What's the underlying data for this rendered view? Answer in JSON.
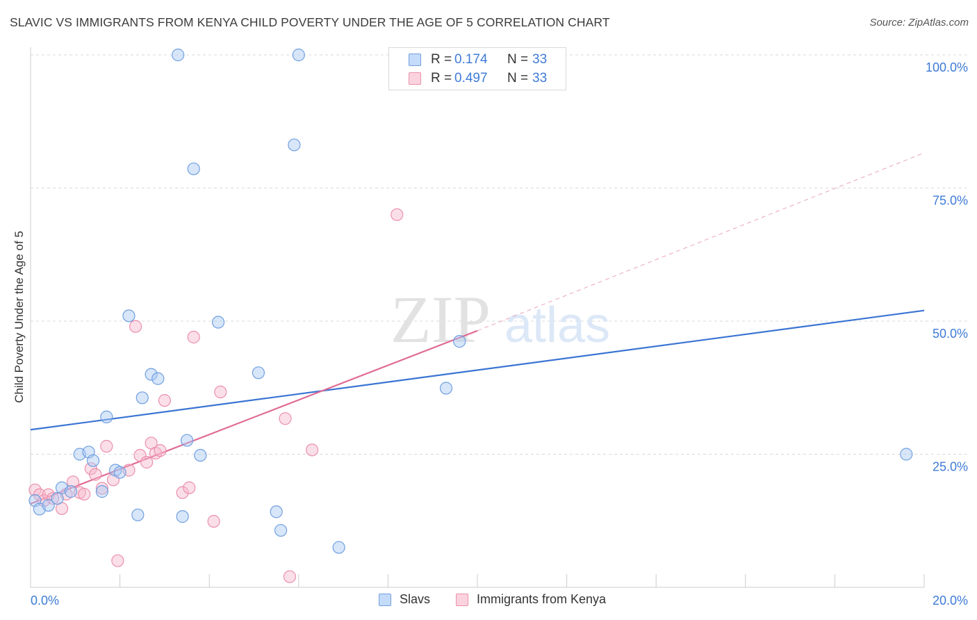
{
  "title": "SLAVIC VS IMMIGRANTS FROM KENYA CHILD POVERTY UNDER THE AGE OF 5 CORRELATION CHART",
  "source": "Source: ZipAtlas.com",
  "watermark": {
    "zip": "ZIP",
    "atlas": "atlas"
  },
  "legend": {
    "rows": [
      {
        "r_label": "R =",
        "r_value": "0.174",
        "n_label": "N =",
        "n_value": "33",
        "color": "#a9c8f5"
      },
      {
        "r_label": "R =",
        "r_value": "0.497",
        "n_label": "N =",
        "n_value": "33",
        "color": "#f6b8cb"
      }
    ]
  },
  "bottom_legend": {
    "series1": "Slavs",
    "series2": "Immigrants from Kenya"
  },
  "colors": {
    "slavs_fill": "#a9c8f5",
    "slavs_stroke": "#6f9fe0",
    "slavs_line": "#3a74d3",
    "kenya_fill": "#f6b8cb",
    "kenya_stroke": "#eb8fac",
    "kenya_line": "#e06b95",
    "tick_label": "#3e7bd6",
    "grid": "#d9d9d9"
  },
  "chart_data": {
    "type": "scatter",
    "title": "SLAVIC VS IMMIGRANTS FROM KENYA CHILD POVERTY UNDER THE AGE OF 5 CORRELATION CHART",
    "xlabel": "",
    "ylabel": "Child Poverty Under the Age of 5",
    "xlim": [
      0,
      20
    ],
    "ylim": [
      0,
      100
    ],
    "x_tick_labels": [
      "0.0%",
      "20.0%"
    ],
    "y_ticks": [
      25,
      50,
      75,
      100
    ],
    "y_tick_labels": [
      "25.0%",
      "50.0%",
      "75.0%",
      "100.0%"
    ],
    "grid": true,
    "legend_position": "top-center",
    "series": [
      {
        "name": "Slavs",
        "r": 0.174,
        "n": 33,
        "points": [
          [
            0.1,
            16.3
          ],
          [
            0.2,
            14.7
          ],
          [
            0.4,
            15.4
          ],
          [
            0.6,
            16.7
          ],
          [
            0.7,
            18.7
          ],
          [
            0.9,
            18.0
          ],
          [
            1.1,
            25.0
          ],
          [
            1.3,
            25.4
          ],
          [
            1.4,
            23.8
          ],
          [
            1.6,
            18.0
          ],
          [
            1.7,
            32.0
          ],
          [
            1.9,
            22.0
          ],
          [
            2.0,
            21.6
          ],
          [
            2.2,
            51.0
          ],
          [
            2.4,
            13.6
          ],
          [
            2.5,
            35.6
          ],
          [
            2.7,
            40.0
          ],
          [
            2.85,
            39.2
          ],
          [
            3.3,
            100.0
          ],
          [
            3.4,
            13.3
          ],
          [
            3.5,
            27.6
          ],
          [
            3.65,
            78.6
          ],
          [
            3.8,
            24.8
          ],
          [
            4.2,
            49.8
          ],
          [
            5.1,
            40.3
          ],
          [
            5.5,
            14.2
          ],
          [
            5.6,
            10.7
          ],
          [
            5.9,
            83.1
          ],
          [
            6.0,
            100.0
          ],
          [
            6.9,
            7.5
          ],
          [
            9.3,
            37.4
          ],
          [
            9.6,
            46.2
          ],
          [
            19.6,
            25.0
          ]
        ],
        "trend": {
          "x": [
            0,
            20
          ],
          "y": [
            29.6,
            52.0
          ]
        }
      },
      {
        "name": "Immigrants from Kenya",
        "r": 0.497,
        "n": 33,
        "points": [
          [
            0.1,
            18.3
          ],
          [
            0.2,
            17.4
          ],
          [
            0.3,
            16.3
          ],
          [
            0.4,
            17.4
          ],
          [
            0.5,
            16.7
          ],
          [
            0.7,
            14.8
          ],
          [
            0.8,
            17.5
          ],
          [
            0.95,
            19.8
          ],
          [
            1.1,
            17.8
          ],
          [
            1.2,
            17.5
          ],
          [
            1.35,
            22.3
          ],
          [
            1.45,
            21.2
          ],
          [
            1.6,
            18.6
          ],
          [
            1.7,
            26.5
          ],
          [
            1.85,
            20.2
          ],
          [
            1.95,
            5.0
          ],
          [
            2.2,
            22.0
          ],
          [
            2.35,
            49.0
          ],
          [
            2.45,
            24.8
          ],
          [
            2.6,
            23.5
          ],
          [
            2.7,
            27.1
          ],
          [
            2.8,
            25.2
          ],
          [
            2.9,
            25.7
          ],
          [
            3.0,
            35.1
          ],
          [
            3.4,
            17.8
          ],
          [
            3.55,
            18.7
          ],
          [
            3.65,
            47.0
          ],
          [
            4.1,
            12.4
          ],
          [
            4.25,
            36.7
          ],
          [
            5.7,
            31.7
          ],
          [
            5.8,
            2.0
          ],
          [
            6.3,
            25.8
          ],
          [
            8.2,
            70.0
          ]
        ],
        "trend": {
          "x": [
            0,
            10
          ],
          "y": [
            15.7,
            48.2
          ]
        },
        "trend_extension": {
          "x": [
            10,
            20
          ],
          "y": [
            48.2,
            81.6
          ]
        }
      }
    ]
  }
}
